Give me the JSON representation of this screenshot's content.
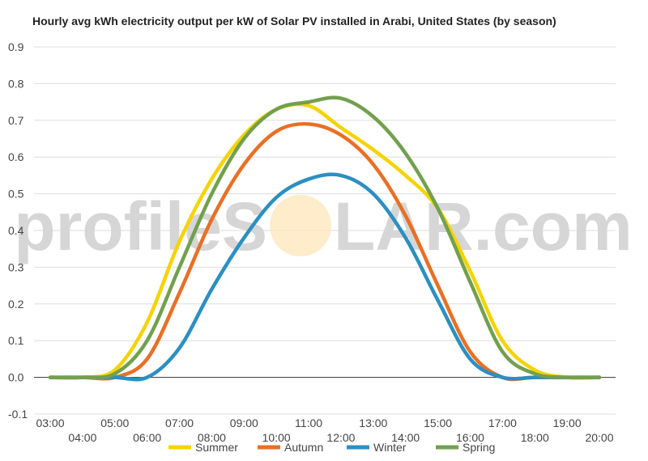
{
  "chart_data": {
    "type": "line",
    "title": "Hourly avg kWh electricity output per kW of Solar PV installed in Arabi, United States (by season)",
    "xlabel": "",
    "ylabel": "",
    "ylim": [
      -0.1,
      0.9
    ],
    "yticks": [
      "-0.1",
      "0.0",
      "0.1",
      "0.2",
      "0.3",
      "0.4",
      "0.5",
      "0.6",
      "0.7",
      "0.8",
      "0.9"
    ],
    "xticks": [
      "03:00",
      "04:00",
      "05:00",
      "06:00",
      "07:00",
      "08:00",
      "09:00",
      "10:00",
      "11:00",
      "12:00",
      "13:00",
      "14:00",
      "15:00",
      "16:00",
      "17:00",
      "18:00",
      "19:00",
      "20:00"
    ],
    "grid": true,
    "legend_position": "bottom",
    "x": [
      3,
      4,
      5,
      6,
      7,
      8,
      9,
      10,
      11,
      12,
      13,
      14,
      15,
      16,
      17,
      18,
      19,
      20
    ],
    "series": [
      {
        "name": "Summer",
        "color": "#f5d300",
        "values": [
          0,
          0,
          0.02,
          0.15,
          0.37,
          0.54,
          0.66,
          0.73,
          0.74,
          0.68,
          0.62,
          0.55,
          0.46,
          0.29,
          0.1,
          0.02,
          0,
          0
        ]
      },
      {
        "name": "Autumn",
        "color": "#e87025",
        "values": [
          0,
          0,
          0,
          0.05,
          0.23,
          0.43,
          0.58,
          0.67,
          0.69,
          0.66,
          0.58,
          0.44,
          0.25,
          0.07,
          0,
          0,
          0,
          0
        ]
      },
      {
        "name": "Winter",
        "color": "#2b8fc1",
        "values": [
          0,
          0,
          0,
          0,
          0.08,
          0.24,
          0.38,
          0.49,
          0.54,
          0.55,
          0.5,
          0.38,
          0.21,
          0.05,
          0,
          0,
          0,
          0
        ]
      },
      {
        "name": "Spring",
        "color": "#72a04e",
        "values": [
          0,
          0,
          0.01,
          0.1,
          0.3,
          0.5,
          0.65,
          0.73,
          0.75,
          0.76,
          0.71,
          0.61,
          0.46,
          0.26,
          0.07,
          0.01,
          0,
          0
        ]
      }
    ]
  },
  "watermark": {
    "part1": "profileS",
    "part2": "LAR.com"
  }
}
